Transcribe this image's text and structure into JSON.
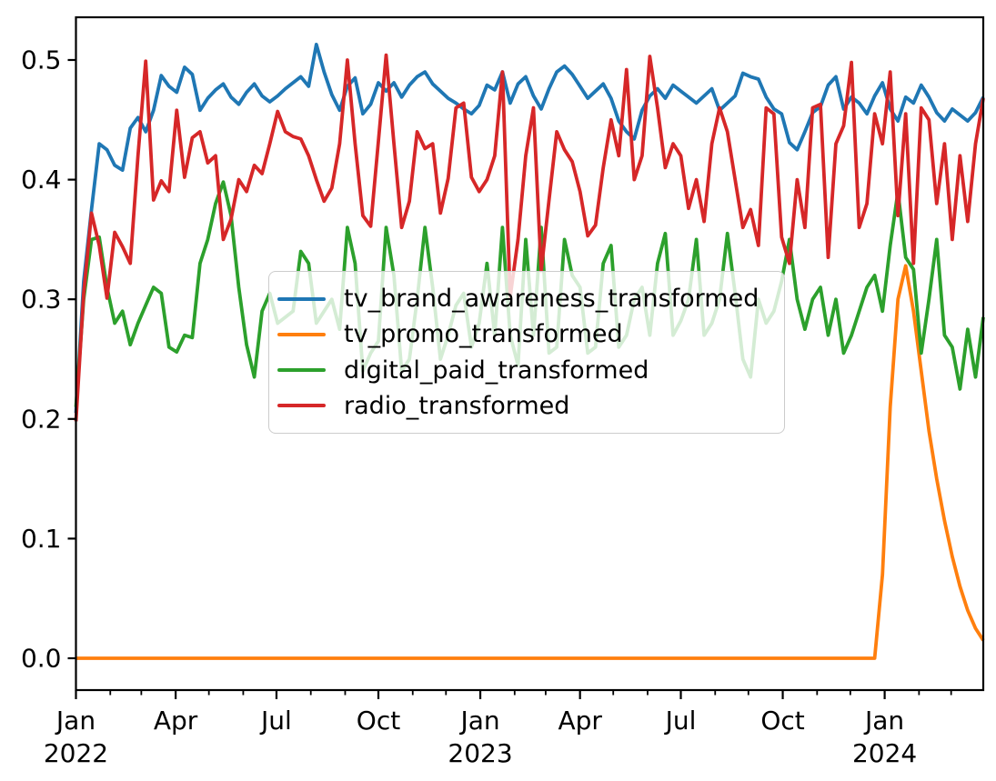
{
  "figure": {
    "background": "#ffffff"
  },
  "chart_data": {
    "type": "line",
    "title": "",
    "xlabel": "",
    "ylabel": "",
    "x_unit": "weekly dates",
    "grid": false,
    "legend": {
      "position": "inside center-left",
      "frame_alpha": 0.8
    },
    "ylim": [
      -0.0266,
      0.5357
    ],
    "y_ticks": [
      0.0,
      0.1,
      0.2,
      0.3,
      0.4,
      0.5
    ],
    "x_range_days": [
      0,
      819
    ],
    "x_ticks_major": [
      {
        "day": 0,
        "label": "Jan",
        "year": "2022"
      },
      {
        "day": 90,
        "label": "Apr"
      },
      {
        "day": 181,
        "label": "Jul"
      },
      {
        "day": 273,
        "label": "Oct"
      },
      {
        "day": 365,
        "label": "Jan",
        "year": "2023"
      },
      {
        "day": 455,
        "label": "Apr"
      },
      {
        "day": 546,
        "label": "Jul"
      },
      {
        "day": 638,
        "label": "Oct"
      },
      {
        "day": 730,
        "label": "Jan",
        "year": "2024"
      }
    ],
    "x_ticks_minor_days": [
      31,
      59,
      120,
      151,
      212,
      243,
      304,
      334,
      396,
      424,
      485,
      516,
      577,
      607,
      669,
      699,
      761,
      790
    ],
    "dates": [
      "2022-01-01",
      "2022-01-08",
      "2022-01-15",
      "2022-01-22",
      "2022-01-29",
      "2022-02-05",
      "2022-02-12",
      "2022-02-19",
      "2022-02-26",
      "2022-03-05",
      "2022-03-12",
      "2022-03-19",
      "2022-03-26",
      "2022-04-02",
      "2022-04-09",
      "2022-04-16",
      "2022-04-23",
      "2022-04-30",
      "2022-05-07",
      "2022-05-14",
      "2022-05-21",
      "2022-05-28",
      "2022-06-04",
      "2022-06-11",
      "2022-06-18",
      "2022-06-25",
      "2022-07-02",
      "2022-07-09",
      "2022-07-16",
      "2022-07-23",
      "2022-07-30",
      "2022-08-06",
      "2022-08-13",
      "2022-08-20",
      "2022-08-27",
      "2022-09-03",
      "2022-09-10",
      "2022-09-17",
      "2022-09-24",
      "2022-10-01",
      "2022-10-08",
      "2022-10-15",
      "2022-10-22",
      "2022-10-29",
      "2022-11-05",
      "2022-11-12",
      "2022-11-19",
      "2022-11-26",
      "2022-12-03",
      "2022-12-10",
      "2022-12-17",
      "2022-12-24",
      "2022-12-31",
      "2023-01-07",
      "2023-01-14",
      "2023-01-21",
      "2023-01-28",
      "2023-02-04",
      "2023-02-11",
      "2023-02-18",
      "2023-02-25",
      "2023-03-04",
      "2023-03-11",
      "2023-03-18",
      "2023-03-25",
      "2023-04-01",
      "2023-04-08",
      "2023-04-15",
      "2023-04-22",
      "2023-04-29",
      "2023-05-06",
      "2023-05-13",
      "2023-05-20",
      "2023-05-27",
      "2023-06-03",
      "2023-06-10",
      "2023-06-17",
      "2023-06-24",
      "2023-07-01",
      "2023-07-08",
      "2023-07-15",
      "2023-07-22",
      "2023-07-29",
      "2023-08-05",
      "2023-08-12",
      "2023-08-19",
      "2023-08-26",
      "2023-09-02",
      "2023-09-09",
      "2023-09-16",
      "2023-09-23",
      "2023-09-30",
      "2023-10-07",
      "2023-10-14",
      "2023-10-21",
      "2023-10-28",
      "2023-11-04",
      "2023-11-11",
      "2023-11-18",
      "2023-11-25",
      "2023-12-02",
      "2023-12-09",
      "2023-12-16",
      "2023-12-23",
      "2023-12-30",
      "2024-01-06",
      "2024-01-13",
      "2024-01-20",
      "2024-01-27",
      "2024-02-03",
      "2024-02-10",
      "2024-02-17",
      "2024-02-24",
      "2024-03-02",
      "2024-03-09",
      "2024-03-16",
      "2024-03-23",
      "2024-03-30"
    ],
    "series": [
      {
        "name": "tv_brand_awareness_transformed",
        "color": "#1f77b4",
        "values": [
          0.205,
          0.315,
          0.375,
          0.43,
          0.425,
          0.412,
          0.408,
          0.443,
          0.452,
          0.44,
          0.458,
          0.487,
          0.478,
          0.473,
          0.494,
          0.488,
          0.458,
          0.468,
          0.475,
          0.48,
          0.469,
          0.463,
          0.473,
          0.48,
          0.47,
          0.465,
          0.47,
          0.476,
          0.481,
          0.486,
          0.478,
          0.513,
          0.49,
          0.471,
          0.458,
          0.478,
          0.485,
          0.455,
          0.463,
          0.481,
          0.474,
          0.481,
          0.469,
          0.479,
          0.486,
          0.49,
          0.48,
          0.474,
          0.468,
          0.464,
          0.459,
          0.455,
          0.462,
          0.479,
          0.475,
          0.49,
          0.464,
          0.48,
          0.486,
          0.47,
          0.459,
          0.476,
          0.49,
          0.495,
          0.488,
          0.478,
          0.468,
          0.474,
          0.48,
          0.468,
          0.449,
          0.44,
          0.434,
          0.458,
          0.47,
          0.476,
          0.468,
          0.479,
          0.474,
          0.469,
          0.464,
          0.47,
          0.476,
          0.458,
          0.464,
          0.47,
          0.489,
          0.486,
          0.484,
          0.469,
          0.459,
          0.455,
          0.431,
          0.425,
          0.44,
          0.456,
          0.461,
          0.479,
          0.486,
          0.459,
          0.469,
          0.464,
          0.455,
          0.47,
          0.481,
          0.459,
          0.449,
          0.469,
          0.464,
          0.479,
          0.469,
          0.456,
          0.449,
          0.459,
          0.454,
          0.449,
          0.456,
          0.469
        ]
      },
      {
        "name": "tv_promo_transformed",
        "color": "#ff7f0e",
        "values": [
          0,
          0,
          0,
          0,
          0,
          0,
          0,
          0,
          0,
          0,
          0,
          0,
          0,
          0,
          0,
          0,
          0,
          0,
          0,
          0,
          0,
          0,
          0,
          0,
          0,
          0,
          0,
          0,
          0,
          0,
          0,
          0,
          0,
          0,
          0,
          0,
          0,
          0,
          0,
          0,
          0,
          0,
          0,
          0,
          0,
          0,
          0,
          0,
          0,
          0,
          0,
          0,
          0,
          0,
          0,
          0,
          0,
          0,
          0,
          0,
          0,
          0,
          0,
          0,
          0,
          0,
          0,
          0,
          0,
          0,
          0,
          0,
          0,
          0,
          0,
          0,
          0,
          0,
          0,
          0,
          0,
          0,
          0,
          0,
          0,
          0,
          0,
          0,
          0,
          0,
          0,
          0,
          0,
          0,
          0,
          0,
          0,
          0,
          0,
          0,
          0,
          0,
          0,
          0,
          0.07,
          0.21,
          0.3,
          0.328,
          0.29,
          0.24,
          0.19,
          0.15,
          0.115,
          0.085,
          0.06,
          0.04,
          0.025,
          0.015
        ]
      },
      {
        "name": "digital_paid_transformed",
        "color": "#2ca02c",
        "values": [
          0.21,
          0.3,
          0.35,
          0.352,
          0.31,
          0.28,
          0.29,
          0.262,
          0.28,
          0.295,
          0.31,
          0.305,
          0.26,
          0.256,
          0.27,
          0.268,
          0.33,
          0.35,
          0.38,
          0.398,
          0.37,
          0.31,
          0.262,
          0.235,
          0.29,
          0.305,
          0.28,
          0.285,
          0.29,
          0.34,
          0.33,
          0.28,
          0.29,
          0.3,
          0.275,
          0.36,
          0.33,
          0.24,
          0.255,
          0.265,
          0.36,
          0.32,
          0.24,
          0.25,
          0.3,
          0.36,
          0.31,
          0.25,
          0.27,
          0.295,
          0.305,
          0.26,
          0.28,
          0.33,
          0.27,
          0.36,
          0.27,
          0.245,
          0.35,
          0.27,
          0.36,
          0.255,
          0.26,
          0.35,
          0.32,
          0.31,
          0.255,
          0.26,
          0.33,
          0.345,
          0.26,
          0.27,
          0.3,
          0.31,
          0.27,
          0.33,
          0.355,
          0.27,
          0.282,
          0.3,
          0.35,
          0.27,
          0.28,
          0.3,
          0.355,
          0.305,
          0.25,
          0.235,
          0.3,
          0.28,
          0.29,
          0.315,
          0.35,
          0.3,
          0.275,
          0.3,
          0.31,
          0.27,
          0.3,
          0.255,
          0.27,
          0.29,
          0.31,
          0.32,
          0.29,
          0.345,
          0.39,
          0.335,
          0.325,
          0.255,
          0.3,
          0.35,
          0.27,
          0.26,
          0.225,
          0.275,
          0.235,
          0.285
        ]
      },
      {
        "name": "radio_transformed",
        "color": "#d62728",
        "values": [
          0.198,
          0.305,
          0.372,
          0.345,
          0.301,
          0.356,
          0.344,
          0.33,
          0.42,
          0.499,
          0.383,
          0.399,
          0.39,
          0.458,
          0.402,
          0.435,
          0.44,
          0.414,
          0.42,
          0.35,
          0.367,
          0.4,
          0.39,
          0.412,
          0.405,
          0.43,
          0.457,
          0.44,
          0.436,
          0.434,
          0.42,
          0.4,
          0.382,
          0.393,
          0.43,
          0.5,
          0.43,
          0.37,
          0.361,
          0.432,
          0.504,
          0.43,
          0.36,
          0.382,
          0.44,
          0.426,
          0.43,
          0.372,
          0.401,
          0.46,
          0.464,
          0.402,
          0.39,
          0.4,
          0.42,
          0.49,
          0.302,
          0.35,
          0.42,
          0.46,
          0.324,
          0.383,
          0.44,
          0.425,
          0.415,
          0.39,
          0.353,
          0.362,
          0.41,
          0.45,
          0.42,
          0.492,
          0.4,
          0.42,
          0.503,
          0.46,
          0.41,
          0.43,
          0.42,
          0.376,
          0.4,
          0.365,
          0.43,
          0.46,
          0.44,
          0.4,
          0.36,
          0.375,
          0.345,
          0.46,
          0.455,
          0.352,
          0.33,
          0.4,
          0.36,
          0.46,
          0.463,
          0.335,
          0.43,
          0.445,
          0.498,
          0.36,
          0.38,
          0.455,
          0.43,
          0.49,
          0.37,
          0.455,
          0.33,
          0.46,
          0.45,
          0.38,
          0.43,
          0.35,
          0.42,
          0.365,
          0.43,
          0.468
        ]
      }
    ]
  }
}
